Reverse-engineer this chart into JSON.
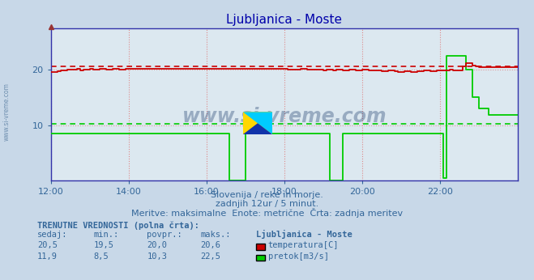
{
  "title": "Ljubljanica - Moste",
  "title_color": "#0000aa",
  "bg_color": "#c8d8e8",
  "plot_bg_color": "#dce8f0",
  "xlim": [
    0,
    144
  ],
  "ylim": [
    0,
    27.5
  ],
  "yticks": [
    10,
    20
  ],
  "xtick_labels": [
    "12:00",
    "14:00",
    "16:00",
    "18:00",
    "20:00",
    "22:00"
  ],
  "xtick_positions": [
    0,
    24,
    48,
    72,
    96,
    120
  ],
  "temp_color": "#cc0000",
  "flow_color": "#00cc00",
  "temp_max_dashed": 20.6,
  "flow_avg_dashed": 10.3,
  "subtitle1": "Slovenija / reke in morje.",
  "subtitle2": "zadnjih 12ur / 5 minut.",
  "subtitle3": "Meritve: maksimalne  Enote: metrične  Črta: zadnja meritev",
  "text_color": "#336699",
  "table_header": "TRENUTNE VREDNOSTI (polna črta):",
  "col_sedaj": "sedaj:",
  "col_min": "min.:",
  "col_povpr": "povpr.:",
  "col_maks": "maks.:",
  "col_station": "Ljubljanica - Moste",
  "temp_sedaj": "20,5",
  "temp_min": "19,5",
  "temp_povpr": "20,0",
  "temp_maks": "20,6",
  "temp_label": "temperatura[C]",
  "flow_sedaj": "11,9",
  "flow_min": "8,5",
  "flow_povpr": "10,3",
  "flow_maks": "22,5",
  "flow_label": "pretok[m3/s]",
  "watermark": "www.si-vreme.com",
  "watermark_color": "#1a3a6a",
  "left_label": "www.si-vreme.com",
  "left_label_color": "#7090b0",
  "spine_color": "#3333aa",
  "grid_v_color": "#dd8888",
  "grid_h_color": "#dd9999"
}
